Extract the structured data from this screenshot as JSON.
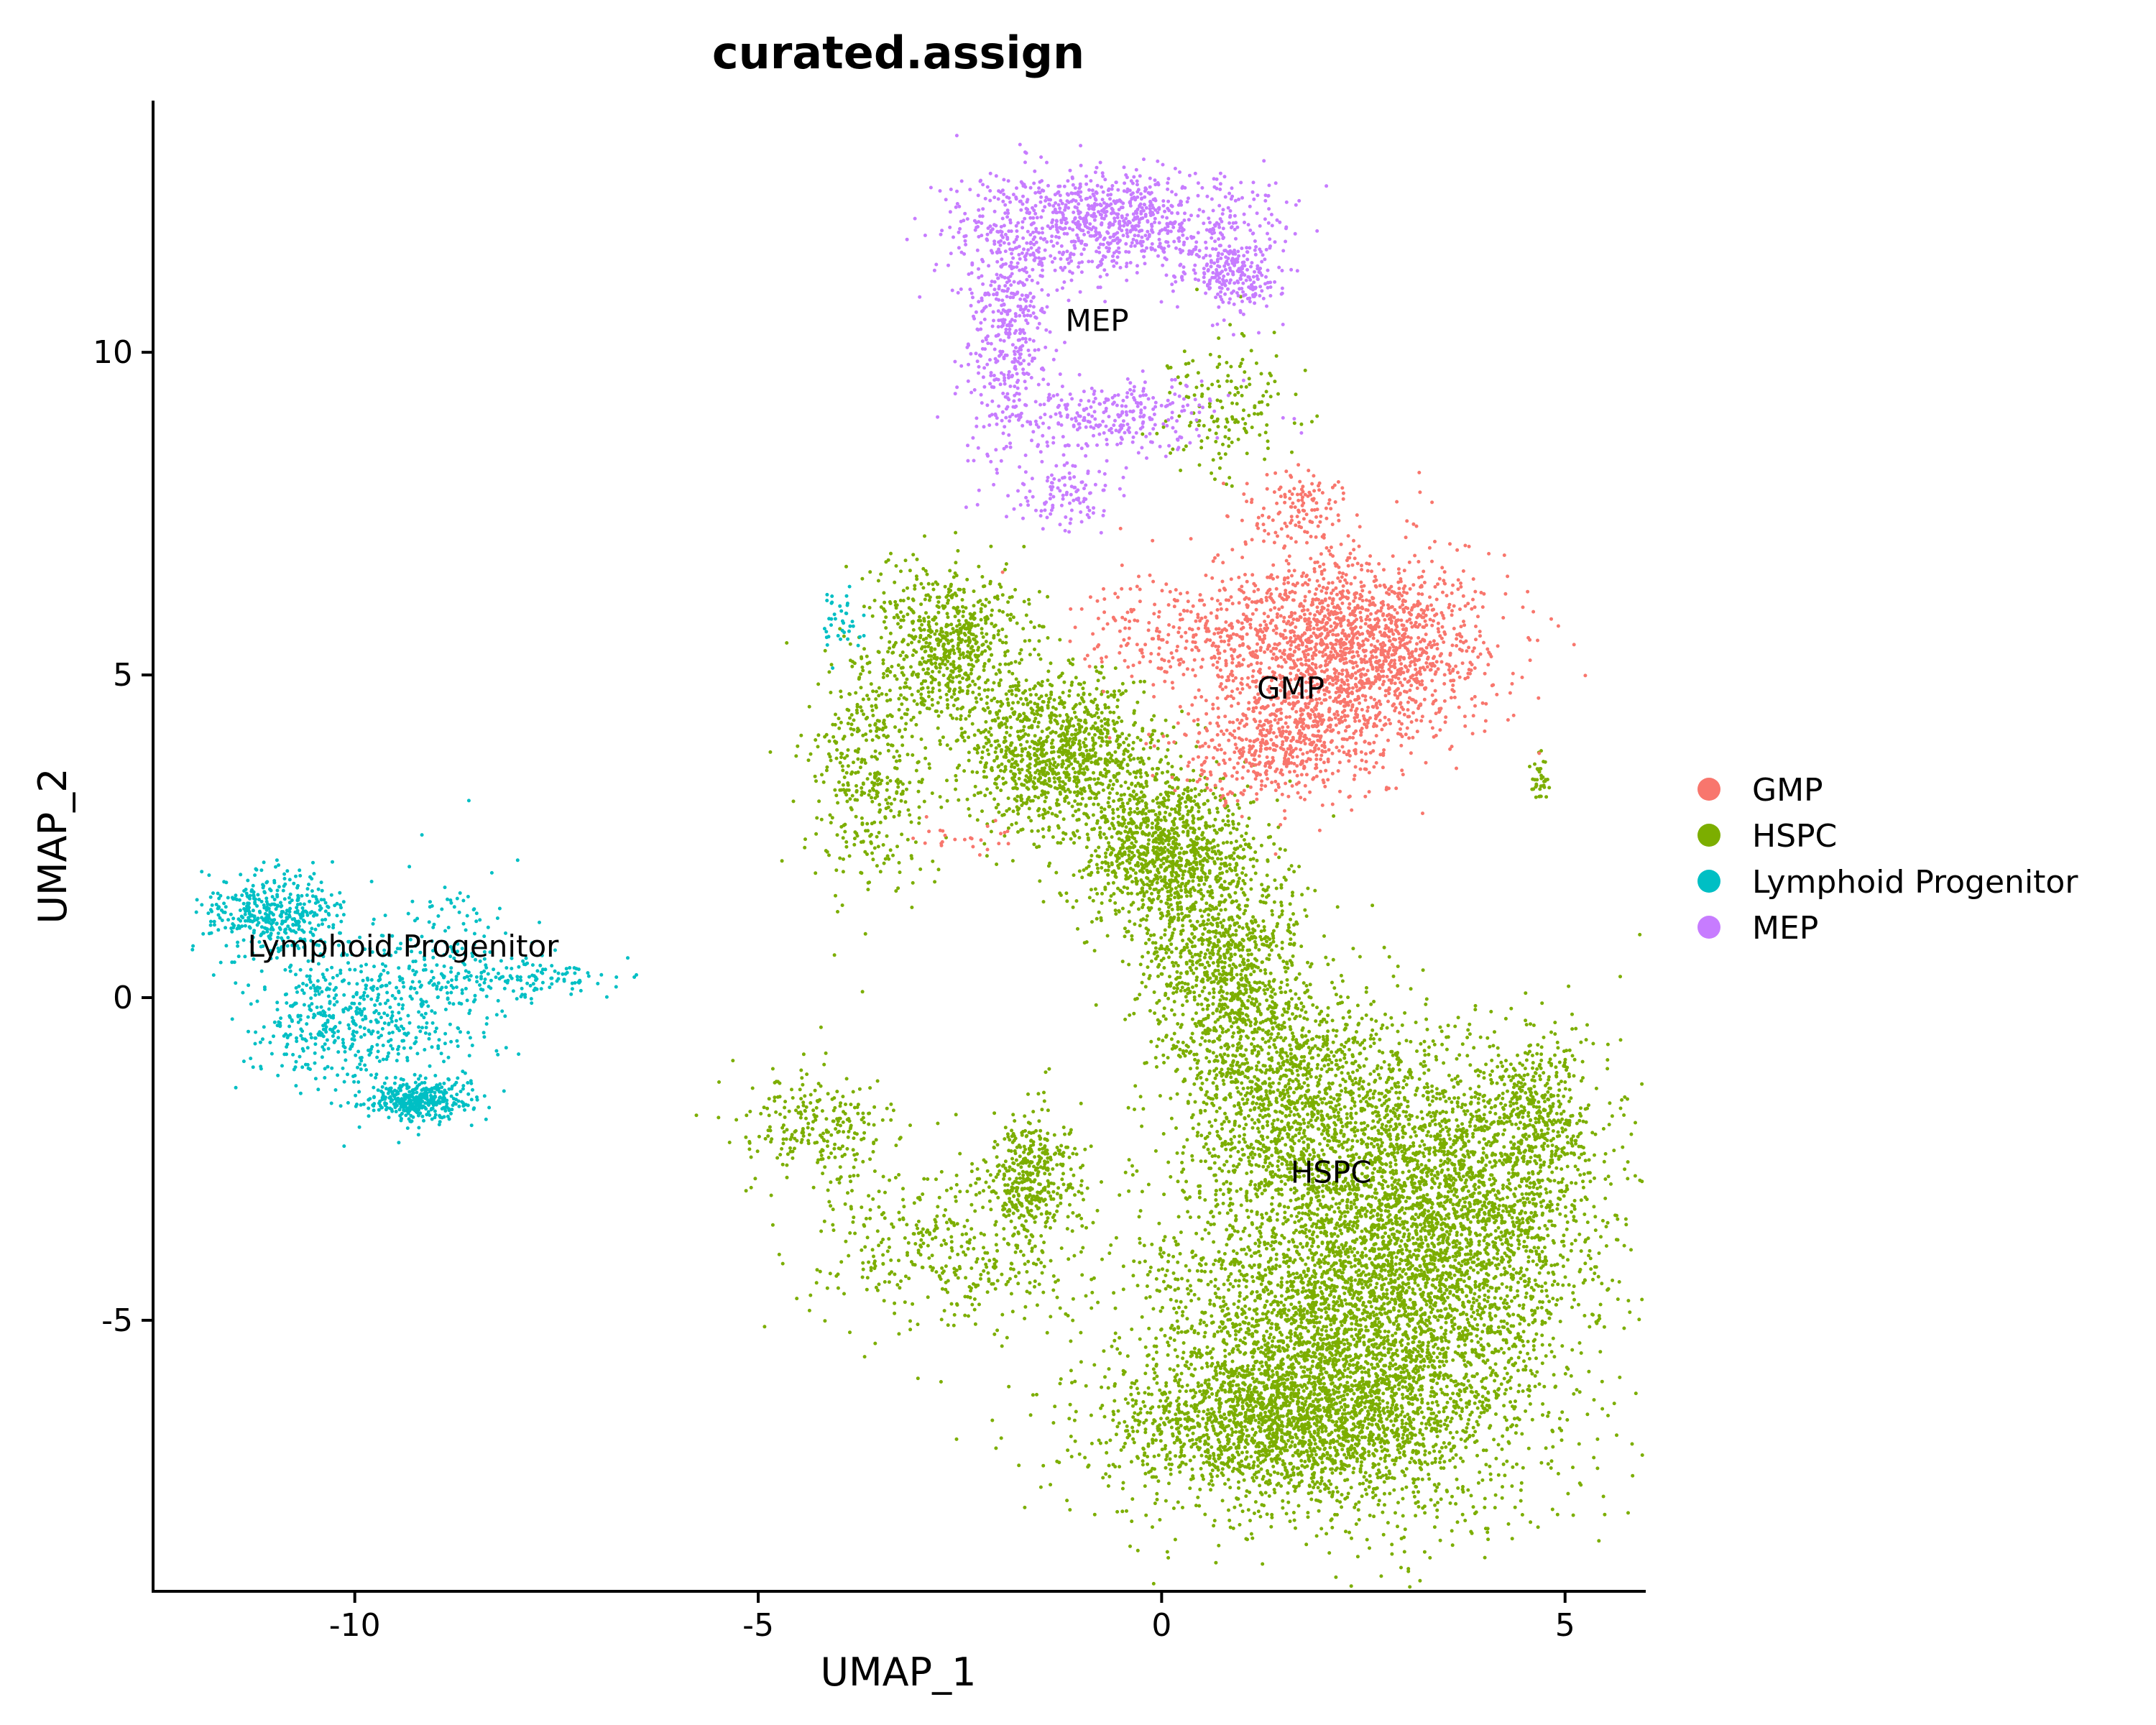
{
  "chart_data": {
    "type": "scatter",
    "title": "curated.assign",
    "xlabel": "UMAP_1",
    "ylabel": "UMAP_2",
    "xlim": [
      -12.5,
      6.0
    ],
    "ylim": [
      -9.2,
      13.9
    ],
    "xticks": [
      {
        "value": -10,
        "label": "-10"
      },
      {
        "value": -5,
        "label": "-5"
      },
      {
        "value": 0,
        "label": "0"
      },
      {
        "value": 5,
        "label": "5"
      }
    ],
    "yticks": [
      {
        "value": -5,
        "label": "-5"
      },
      {
        "value": 0,
        "label": "0"
      },
      {
        "value": 5,
        "label": "5"
      },
      {
        "value": 10,
        "label": "10"
      }
    ],
    "grid": false,
    "legend_position": "right",
    "series": [
      {
        "name": "GMP",
        "color": "#F8766D"
      },
      {
        "name": "HSPC",
        "color": "#7CAE00"
      },
      {
        "name": "Lymphoid Progenitor",
        "color": "#00BFC4"
      },
      {
        "name": "MEP",
        "color": "#C77CFF"
      }
    ],
    "cluster_labels": [
      {
        "text": "MEP",
        "x": -0.8,
        "y": 10.5
      },
      {
        "text": "GMP",
        "x": 1.6,
        "y": 4.8
      },
      {
        "text": "HSPC",
        "x": 2.1,
        "y": -2.7
      },
      {
        "text": "Lymphoid Progenitor",
        "x": -9.4,
        "y": 0.8
      }
    ],
    "clusters": [
      {
        "series": "HSPC",
        "n": 4200,
        "cx": 2.4,
        "cy": -5.2,
        "sx": 1.3,
        "sy": 1.4
      },
      {
        "series": "HSPC",
        "n": 2200,
        "cx": 3.6,
        "cy": -3.0,
        "sx": 0.9,
        "sy": 1.2
      },
      {
        "series": "HSPC",
        "n": 1500,
        "cx": 1.4,
        "cy": -6.6,
        "sx": 1.1,
        "sy": 0.6
      },
      {
        "series": "HSPC",
        "n": 1200,
        "cx": 1.6,
        "cy": -1.5,
        "sx": 0.7,
        "sy": 0.9
      },
      {
        "series": "HSPC",
        "n": 1000,
        "cx": 0.8,
        "cy": 0.5,
        "sx": 0.5,
        "sy": 0.9
      },
      {
        "series": "HSPC",
        "n": 1000,
        "cx": 0.0,
        "cy": 2.3,
        "sx": 0.5,
        "sy": 0.6
      },
      {
        "series": "HSPC",
        "n": 1100,
        "cx": -1.3,
        "cy": 3.8,
        "sx": 0.6,
        "sy": 0.6
      },
      {
        "series": "HSPC",
        "n": 700,
        "cx": -2.6,
        "cy": 5.5,
        "sx": 0.5,
        "sy": 0.6
      },
      {
        "series": "HSPC",
        "n": 400,
        "cx": -3.6,
        "cy": 3.5,
        "sx": 0.4,
        "sy": 1.0
      },
      {
        "series": "HSPC",
        "n": 350,
        "cx": -1.6,
        "cy": -2.7,
        "sx": 0.25,
        "sy": 0.5
      },
      {
        "series": "HSPC",
        "n": 450,
        "cx": -2.6,
        "cy": -3.8,
        "sx": 0.9,
        "sy": 0.6
      },
      {
        "series": "HSPC",
        "n": 250,
        "cx": -4.2,
        "cy": -2.0,
        "sx": 0.5,
        "sy": 0.4
      },
      {
        "series": "HSPC",
        "n": 300,
        "cx": 4.7,
        "cy": -1.8,
        "sx": 0.3,
        "sy": 0.6
      },
      {
        "series": "HSPC",
        "n": 160,
        "cx": 0.8,
        "cy": 9.3,
        "sx": 0.4,
        "sy": 0.6
      },
      {
        "series": "HSPC",
        "n": 40,
        "cx": 4.7,
        "cy": 3.4,
        "sx": 0.05,
        "sy": 0.2
      },
      {
        "series": "GMP",
        "n": 1800,
        "cx": 2.4,
        "cy": 5.4,
        "sx": 0.8,
        "sy": 0.8
      },
      {
        "series": "GMP",
        "n": 500,
        "cx": 1.4,
        "cy": 4.0,
        "sx": 0.6,
        "sy": 0.5
      },
      {
        "series": "GMP",
        "n": 300,
        "cx": 0.5,
        "cy": 5.7,
        "sx": 0.8,
        "sy": 0.4
      },
      {
        "series": "GMP",
        "n": 120,
        "cx": 1.7,
        "cy": 7.6,
        "sx": 0.3,
        "sy": 0.3
      },
      {
        "series": "GMP",
        "n": 25,
        "cx": -2.4,
        "cy": 2.5,
        "sx": 0.3,
        "sy": 0.2
      },
      {
        "series": "MEP",
        "n": 900,
        "cx": -0.6,
        "cy": 12.0,
        "sx": 0.9,
        "sy": 0.4
      },
      {
        "series": "MEP",
        "n": 450,
        "cx": -1.9,
        "cy": 10.5,
        "sx": 0.3,
        "sy": 0.9
      },
      {
        "series": "MEP",
        "n": 250,
        "cx": 0.9,
        "cy": 11.2,
        "sx": 0.3,
        "sy": 0.3
      },
      {
        "series": "MEP",
        "n": 300,
        "cx": -0.7,
        "cy": 9.0,
        "sx": 0.7,
        "sy": 0.3
      },
      {
        "series": "MEP",
        "n": 120,
        "cx": -1.3,
        "cy": 7.8,
        "sx": 0.4,
        "sy": 0.3
      },
      {
        "series": "Lymphoid Progenitor",
        "n": 400,
        "cx": -11.0,
        "cy": 1.3,
        "sx": 0.4,
        "sy": 0.3
      },
      {
        "series": "Lymphoid Progenitor",
        "n": 500,
        "cx": -10.1,
        "cy": -0.3,
        "sx": 0.6,
        "sy": 0.6
      },
      {
        "series": "Lymphoid Progenitor",
        "n": 400,
        "cx": -9.2,
        "cy": -1.6,
        "sx": 0.3,
        "sy": 0.15
      },
      {
        "series": "Lymphoid Progenitor",
        "n": 200,
        "cx": -8.8,
        "cy": 0.4,
        "sx": 0.4,
        "sy": 0.8
      },
      {
        "series": "Lymphoid Progenitor",
        "n": 120,
        "cx": -7.8,
        "cy": 0.3,
        "sx": 0.6,
        "sy": 0.15
      },
      {
        "series": "Lymphoid Progenitor",
        "n": 40,
        "cx": -4.0,
        "cy": 5.8,
        "sx": 0.15,
        "sy": 0.3
      }
    ]
  }
}
